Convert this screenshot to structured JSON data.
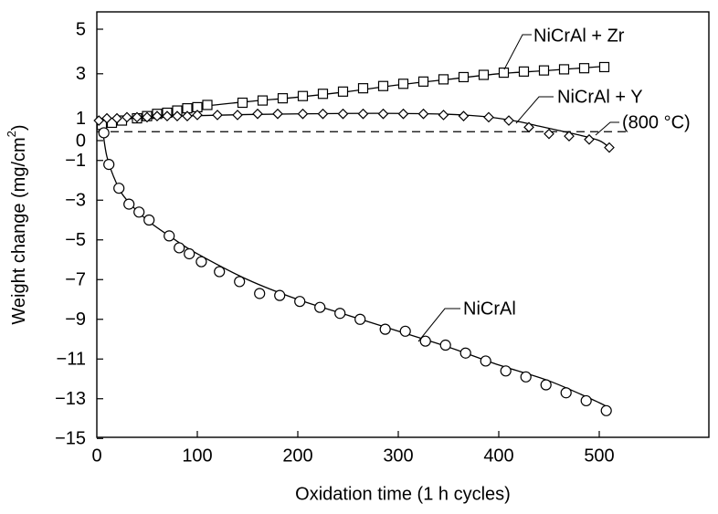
{
  "chart_data": {
    "type": "scatter",
    "xlabel": "Oxidation time (1 h cycles)",
    "ylabel": "Weight change (mg/cm",
    "ylabel_sup": "2",
    "ylabel_close": ")",
    "xlim": [
      0,
      600
    ],
    "ylim": [
      -15,
      6
    ],
    "x_ticks": [
      0,
      100,
      200,
      300,
      400,
      500
    ],
    "y_ticks": [
      5,
      3,
      1,
      0,
      -1,
      -3,
      -5,
      -7,
      -9,
      -11,
      -13,
      -15
    ],
    "y_tick_labels": [
      "5",
      "3",
      "1",
      "0",
      "−1",
      "−3",
      "−5",
      "−7",
      "−9",
      "−11",
      "−13",
      "−15"
    ],
    "grid": false,
    "reference_line": {
      "y": 0.4,
      "style": "dashed",
      "x_range": [
        0,
        530
      ],
      "label": "(800 °C)"
    },
    "series": [
      {
        "name": "NiCrAl + Zr",
        "marker": "square",
        "x": [
          5,
          15,
          25,
          40,
          50,
          60,
          70,
          80,
          90,
          100,
          110,
          145,
          165,
          185,
          205,
          225,
          245,
          265,
          285,
          305,
          325,
          345,
          365,
          385,
          405,
          425,
          445,
          465,
          485,
          505
        ],
        "y": [
          0.7,
          0.8,
          0.9,
          1.0,
          1.1,
          1.2,
          1.25,
          1.35,
          1.45,
          1.5,
          1.6,
          1.7,
          1.8,
          1.9,
          2.0,
          2.1,
          2.2,
          2.35,
          2.45,
          2.55,
          2.65,
          2.75,
          2.85,
          2.95,
          3.05,
          3.1,
          3.15,
          3.2,
          3.25,
          3.3
        ],
        "line_x": [
          0,
          50,
          100,
          150,
          200,
          250,
          300,
          350,
          400,
          450,
          510
        ],
        "line_y": [
          0.75,
          1.1,
          1.5,
          1.75,
          1.95,
          2.2,
          2.5,
          2.75,
          3.0,
          3.15,
          3.35
        ]
      },
      {
        "name": "NiCrAl + Y",
        "marker": "diamond",
        "x": [
          2,
          10,
          20,
          30,
          40,
          50,
          60,
          70,
          80,
          90,
          100,
          120,
          140,
          160,
          180,
          205,
          225,
          245,
          265,
          285,
          305,
          325,
          345,
          365,
          390,
          410,
          430,
          450,
          470,
          490,
          510
        ],
        "y": [
          0.9,
          1.0,
          1.0,
          1.05,
          1.05,
          1.05,
          1.1,
          1.1,
          1.1,
          1.1,
          1.15,
          1.15,
          1.15,
          1.2,
          1.2,
          1.2,
          1.2,
          1.2,
          1.2,
          1.2,
          1.2,
          1.2,
          1.15,
          1.1,
          1.05,
          0.9,
          0.6,
          0.3,
          0.2,
          0.05,
          -0.35
        ],
        "line_x": [
          0,
          50,
          100,
          150,
          200,
          250,
          300,
          350,
          380,
          400,
          420,
          440,
          460,
          480,
          500,
          510
        ],
        "line_y": [
          0.9,
          1.05,
          1.12,
          1.17,
          1.2,
          1.22,
          1.22,
          1.18,
          1.1,
          1.0,
          0.85,
          0.65,
          0.45,
          0.25,
          0.0,
          -0.35
        ]
      },
      {
        "name": "NiCrAl",
        "marker": "circle",
        "x": [
          7,
          12,
          22,
          32,
          42,
          52,
          72,
          82,
          92,
          104,
          122,
          142,
          162,
          182,
          202,
          222,
          242,
          262,
          287,
          307,
          327,
          347,
          367,
          387,
          407,
          427,
          447,
          467,
          487,
          507
        ],
        "y": [
          0.35,
          -1.2,
          -2.4,
          -3.2,
          -3.6,
          -4.0,
          -4.8,
          -5.4,
          -5.7,
          -6.1,
          -6.6,
          -7.1,
          -7.7,
          -7.8,
          -8.1,
          -8.4,
          -8.7,
          -9.0,
          -9.5,
          -9.6,
          -10.1,
          -10.3,
          -10.7,
          -11.1,
          -11.6,
          -11.9,
          -12.3,
          -12.7,
          -13.1,
          -13.6
        ],
        "line_x": [
          5,
          10,
          20,
          30,
          50,
          75,
          100,
          150,
          200,
          250,
          300,
          350,
          400,
          450,
          500,
          510
        ],
        "line_y": [
          0.8,
          -0.8,
          -2.2,
          -3.0,
          -4.0,
          -4.9,
          -5.7,
          -7.0,
          -8.0,
          -8.8,
          -9.6,
          -10.4,
          -11.3,
          -12.1,
          -13.2,
          -13.5
        ]
      }
    ],
    "annotations": [
      {
        "series": "NiCrAl + Zr",
        "text": "NiCrAl + Zr",
        "anchor": "upper-right"
      },
      {
        "series": "NiCrAl + Y",
        "text": "NiCrAl + Y",
        "anchor": "right"
      },
      {
        "series": "NiCrAl",
        "text": "NiCrAl",
        "anchor": "center"
      }
    ]
  }
}
